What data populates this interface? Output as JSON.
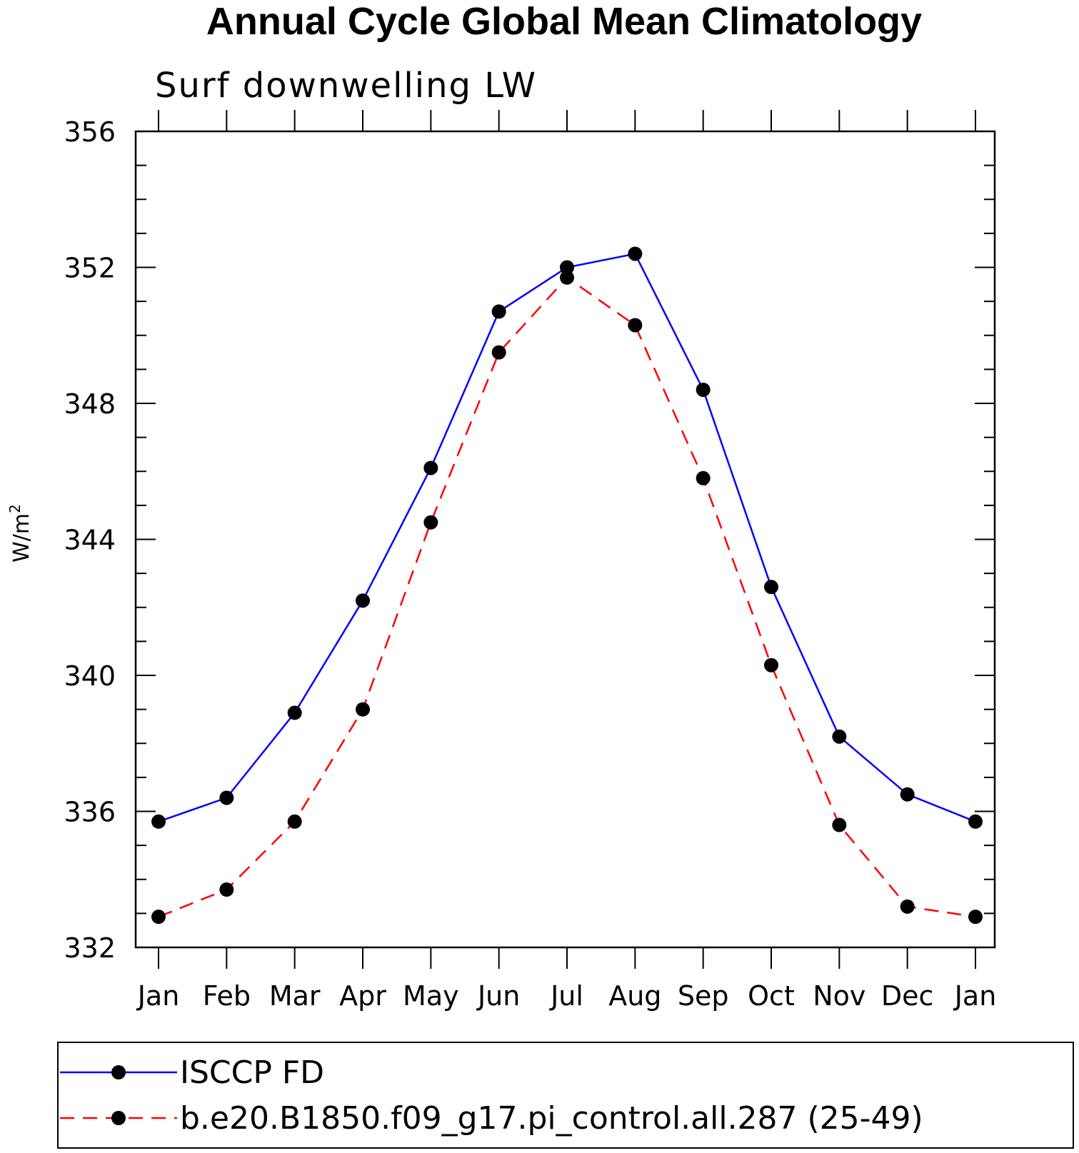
{
  "chart_data": {
    "type": "line",
    "title": "Annual Cycle Global Mean Climatology",
    "subtitle": "Surf downwelling LW",
    "ylabel": "W/m",
    "ylabel_superscript": "2",
    "xlabel": "",
    "categories": [
      "Jan",
      "Feb",
      "Mar",
      "Apr",
      "May",
      "Jun",
      "Jul",
      "Aug",
      "Sep",
      "Oct",
      "Nov",
      "Dec",
      "Jan"
    ],
    "ylim": [
      332,
      356
    ],
    "yticks": [
      332,
      336,
      340,
      344,
      348,
      352,
      356
    ],
    "y_minor_step": 1,
    "grid": false,
    "legend_position": "bottom",
    "series": [
      {
        "name": "ISCCP FD",
        "color": "#0000ff",
        "dash": "solid",
        "marker": "filled-circle",
        "values": [
          335.7,
          336.4,
          338.9,
          342.2,
          346.1,
          350.7,
          352.0,
          352.4,
          348.4,
          342.6,
          338.2,
          336.5,
          335.7
        ]
      },
      {
        "name": "b.e20.B1850.f09_g17.pi_control.all.287 (25-49)",
        "color": "#ff0000",
        "dash": "dashed",
        "marker": "filled-circle",
        "values": [
          332.9,
          333.7,
          335.7,
          339.0,
          344.5,
          349.5,
          351.7,
          350.3,
          345.8,
          340.3,
          335.6,
          333.2,
          332.9
        ]
      }
    ]
  }
}
